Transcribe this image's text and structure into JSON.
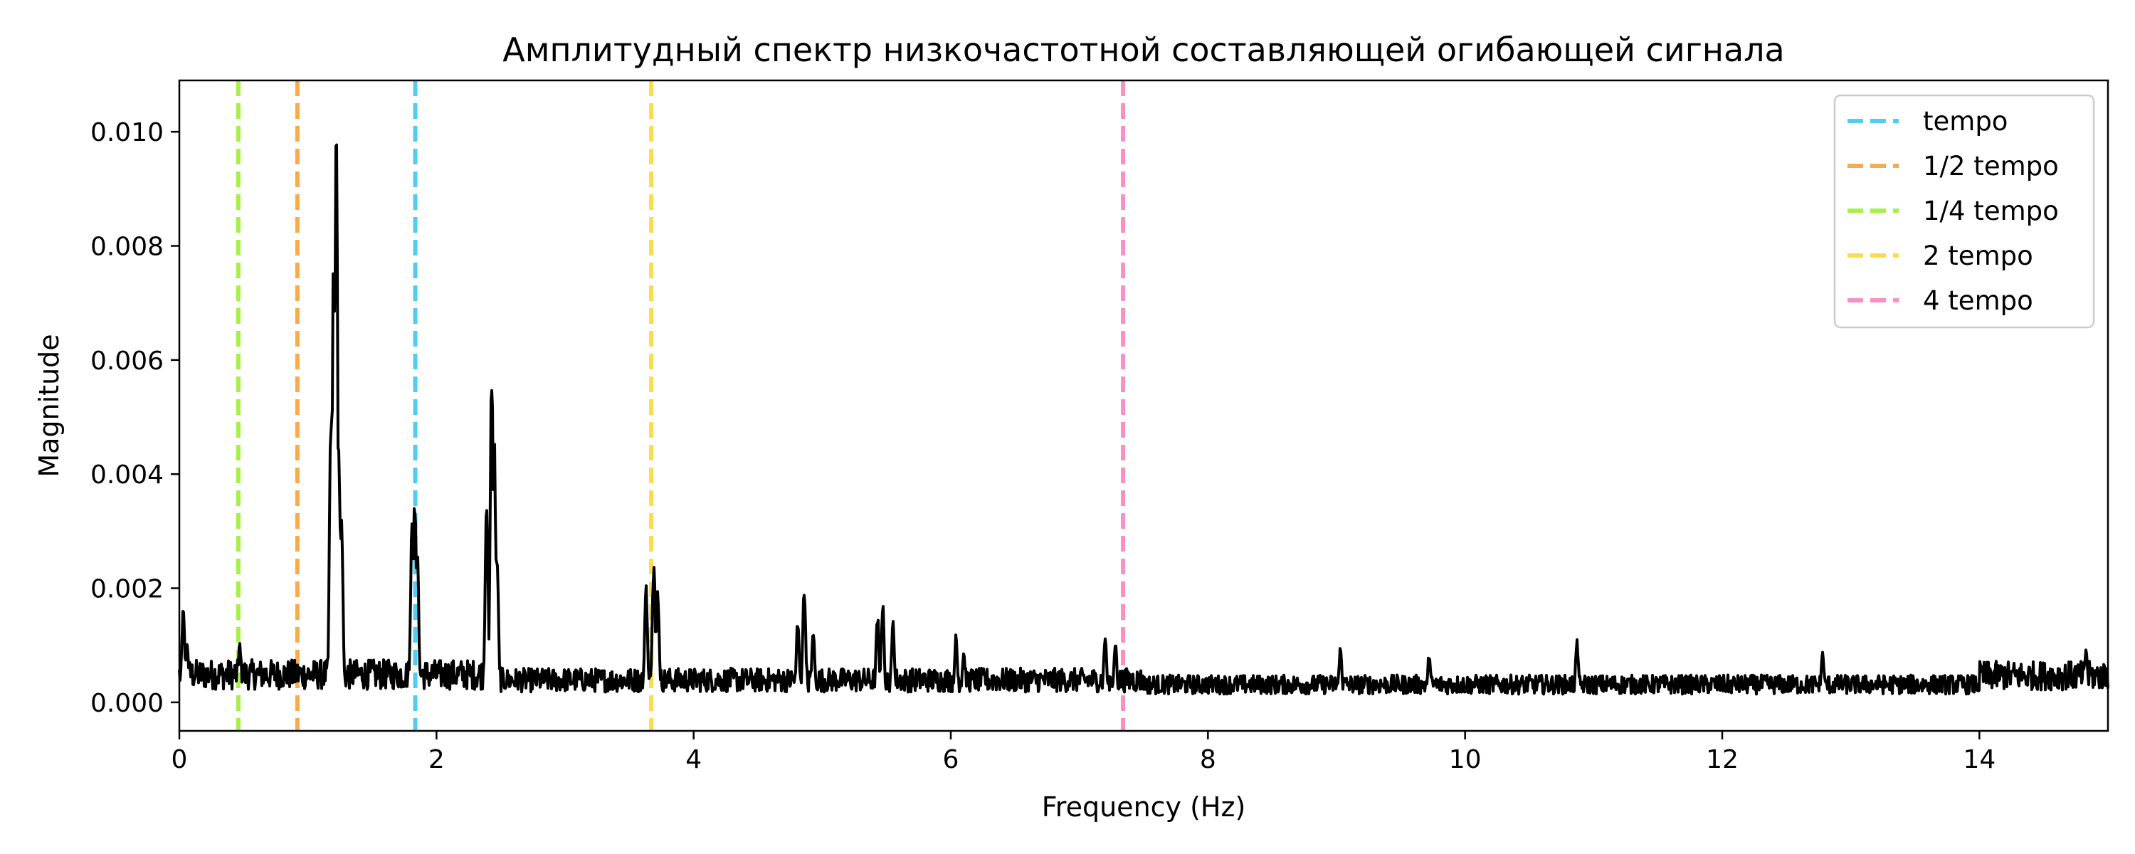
{
  "chart_data": {
    "type": "line",
    "title": "Амплитудный спектр низкочастотной составляющей огибающей сигнала",
    "xlabel": "Frequency (Hz)",
    "ylabel": "Magnitude",
    "xlim": [
      0,
      15
    ],
    "ylim": [
      -0.0005,
      0.0109
    ],
    "xticks": [
      0,
      2,
      4,
      6,
      8,
      10,
      12,
      14
    ],
    "yticks": [
      0.0,
      0.002,
      0.004,
      0.006,
      0.008,
      0.01
    ],
    "ytick_labels": [
      "0.000",
      "0.002",
      "0.004",
      "0.006",
      "0.008",
      "0.010"
    ],
    "grid": false,
    "legend_position": "top-right",
    "spectrum": {
      "color": "#000000",
      "baseline": 0.0004,
      "peaks": [
        {
          "x": 0.03,
          "y": 0.0017
        },
        {
          "x": 0.06,
          "y": 0.0011
        },
        {
          "x": 0.47,
          "y": 0.0011
        },
        {
          "x": 1.18,
          "y": 0.0055
        },
        {
          "x": 1.2,
          "y": 0.0081
        },
        {
          "x": 1.22,
          "y": 0.0104
        },
        {
          "x": 1.24,
          "y": 0.0049
        },
        {
          "x": 1.26,
          "y": 0.0035
        },
        {
          "x": 1.81,
          "y": 0.0033
        },
        {
          "x": 1.83,
          "y": 0.0039
        },
        {
          "x": 1.85,
          "y": 0.0028
        },
        {
          "x": 2.39,
          "y": 0.0037
        },
        {
          "x": 2.43,
          "y": 0.0064
        },
        {
          "x": 2.45,
          "y": 0.0047
        },
        {
          "x": 2.47,
          "y": 0.0027
        },
        {
          "x": 3.63,
          "y": 0.0021
        },
        {
          "x": 3.69,
          "y": 0.0026
        },
        {
          "x": 3.72,
          "y": 0.0021
        },
        {
          "x": 4.81,
          "y": 0.0015
        },
        {
          "x": 4.86,
          "y": 0.0021
        },
        {
          "x": 4.93,
          "y": 0.0013
        },
        {
          "x": 5.43,
          "y": 0.0016
        },
        {
          "x": 5.47,
          "y": 0.0018
        },
        {
          "x": 5.55,
          "y": 0.0015
        },
        {
          "x": 6.04,
          "y": 0.0012
        },
        {
          "x": 6.1,
          "y": 0.0009
        },
        {
          "x": 7.2,
          "y": 0.0012
        },
        {
          "x": 7.28,
          "y": 0.0011
        },
        {
          "x": 9.03,
          "y": 0.001
        },
        {
          "x": 9.72,
          "y": 0.0009
        },
        {
          "x": 10.87,
          "y": 0.0011
        },
        {
          "x": 12.78,
          "y": 0.0009
        },
        {
          "x": 14.83,
          "y": 0.001
        }
      ]
    },
    "series": [
      {
        "name": "tempo",
        "x": 1.835,
        "color": "#4fcdf5",
        "style": "dashed"
      },
      {
        "name": "1/2 tempo",
        "x": 0.918,
        "color": "#f7ab4a",
        "style": "dashed"
      },
      {
        "name": "1/4 tempo",
        "x": 0.459,
        "color": "#a6f147",
        "style": "dashed"
      },
      {
        "name": "2 tempo",
        "x": 3.67,
        "color": "#fcdc4d",
        "style": "dashed"
      },
      {
        "name": "4 tempo",
        "x": 7.34,
        "color": "#f990c5",
        "style": "dashed"
      }
    ]
  }
}
